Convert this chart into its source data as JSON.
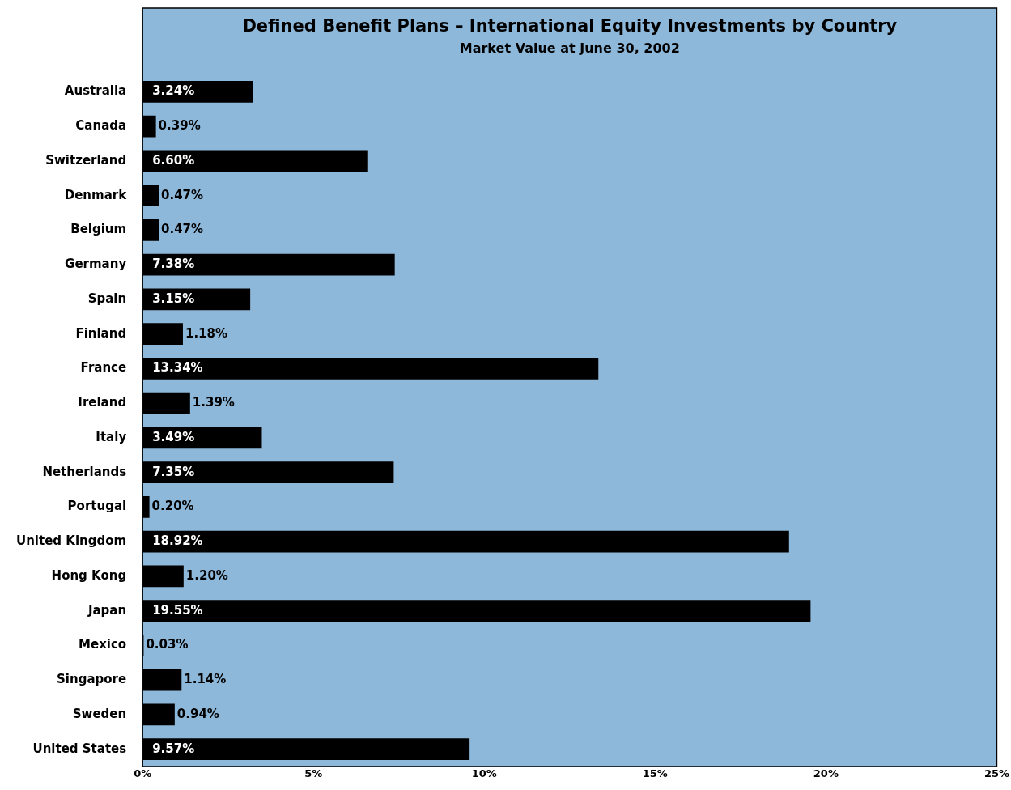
{
  "chart_data": {
    "type": "bar",
    "orientation": "horizontal",
    "title": "Defined Benefit Plans – International Equity Investments by Country",
    "subtitle": "Market Value at June 30, 2002",
    "categories": [
      "Australia",
      "Canada",
      "Switzerland",
      "Denmark",
      "Belgium",
      "Germany",
      "Spain",
      "Finland",
      "France",
      "Ireland",
      "Italy",
      "Netherlands",
      "Portugal",
      "United Kingdom",
      "Hong Kong",
      "Japan",
      "Mexico",
      "Singapore",
      "Sweden",
      "United States"
    ],
    "values": [
      3.24,
      0.39,
      6.6,
      0.47,
      0.47,
      7.38,
      3.15,
      1.18,
      13.34,
      1.39,
      3.49,
      7.35,
      0.2,
      18.92,
      1.2,
      19.55,
      0.03,
      1.14,
      0.94,
      9.57
    ],
    "value_labels": [
      "3.24%",
      "0.39%",
      "6.60%",
      "0.47%",
      "0.47%",
      "7.38%",
      "3.15%",
      "1.18%",
      "13.34%",
      "1.39%",
      "3.49%",
      "7.35%",
      "0.20%",
      "18.92%",
      "1.20%",
      "19.55%",
      "0.03%",
      "1.14%",
      "0.94%",
      "9.57%"
    ],
    "color": "#000000",
    "xlim": [
      0,
      25
    ],
    "xticks": [
      {
        "value": 0,
        "label": "0%"
      },
      {
        "value": 5,
        "label": "5%"
      },
      {
        "value": 10,
        "label": "10%"
      },
      {
        "value": 15,
        "label": "15%"
      },
      {
        "value": 20,
        "label": "20%"
      },
      {
        "value": 25,
        "label": "25%"
      }
    ],
    "grid": false,
    "legend": false
  }
}
